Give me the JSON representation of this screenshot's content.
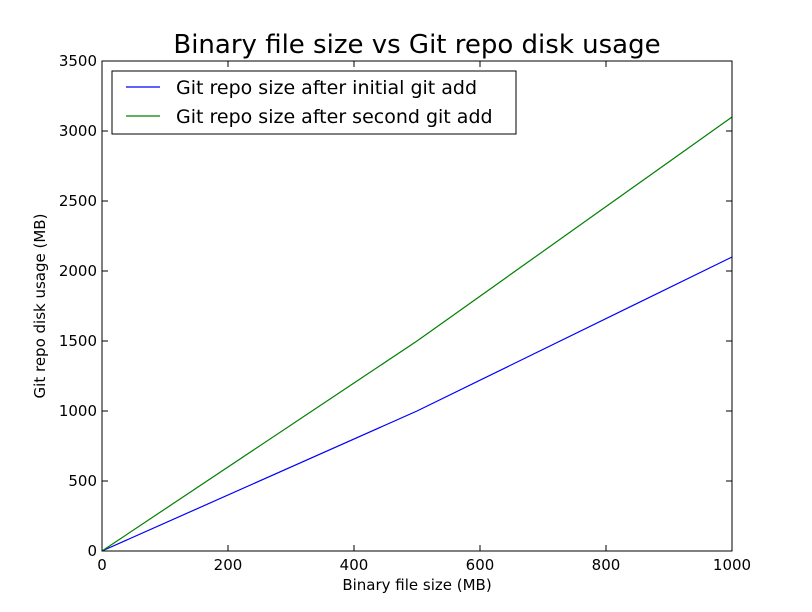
{
  "chart_data": {
    "type": "line",
    "title": "Binary file size vs Git repo disk usage",
    "xlabel": "Binary file size (MB)",
    "ylabel": "Git repo disk usage (MB)",
    "xlim": [
      0,
      1000
    ],
    "ylim": [
      0,
      3500
    ],
    "xticks": [
      0,
      200,
      400,
      600,
      800,
      1000
    ],
    "yticks": [
      0,
      500,
      1000,
      1500,
      2000,
      2500,
      3000,
      3500
    ],
    "grid": false,
    "legend_position": "top-left",
    "series": [
      {
        "name": "Git repo size after initial git add",
        "color": "#0000ff",
        "x": [
          0,
          500,
          1000
        ],
        "y": [
          0,
          1000,
          2100
        ]
      },
      {
        "name": "Git repo size after second git add",
        "color": "#008000",
        "x": [
          0,
          500,
          1000
        ],
        "y": [
          0,
          1500,
          3100
        ]
      }
    ]
  }
}
